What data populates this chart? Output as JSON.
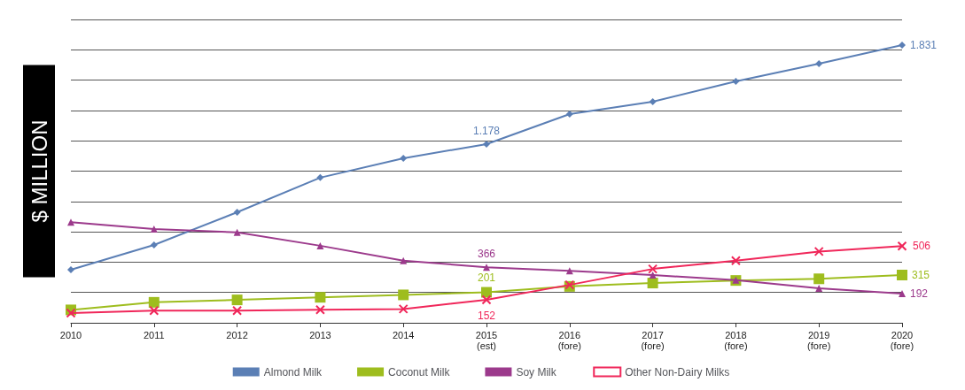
{
  "chart_data": {
    "type": "line",
    "ylabel": "$ MILLION",
    "categories": [
      "2010",
      "2011",
      "2012",
      "2013",
      "2014",
      "2015\n(est)",
      "2016\n(fore)",
      "2017\n(fore)",
      "2018\n(fore)",
      "2019\n(fore)",
      "2020\n(fore)"
    ],
    "series": [
      {
        "name": "Almond Milk",
        "color": "#5b7fb5",
        "marker": "diamond",
        "values": [
          350,
          513,
          729,
          957,
          1085,
          1178,
          1376,
          1458,
          1592,
          1709,
          1831
        ],
        "value_labels": [
          null,
          null,
          null,
          null,
          null,
          "1.178",
          null,
          null,
          null,
          null,
          "1.831"
        ]
      },
      {
        "name": "Coconut Milk",
        "color": "#9ebd1e",
        "marker": "square",
        "values": [
          85,
          135,
          151,
          168,
          184,
          201,
          240,
          262,
          279,
          290,
          315
        ],
        "value_labels": [
          null,
          null,
          null,
          null,
          null,
          "201",
          null,
          null,
          null,
          null,
          "315"
        ]
      },
      {
        "name": "Soy Milk",
        "color": "#9c3a8c",
        "marker": "triangle",
        "values": [
          663,
          618,
          596,
          508,
          410,
          366,
          343,
          315,
          282,
          227,
          192
        ],
        "value_labels": [
          null,
          null,
          null,
          null,
          null,
          "366",
          null,
          null,
          null,
          null,
          "192"
        ]
      },
      {
        "name": "Other Non-Dairy Milks",
        "color": "#f0275a",
        "marker": "cross",
        "values": [
          64,
          80,
          80,
          86,
          91,
          152,
          250,
          355,
          410,
          470,
          506
        ],
        "value_labels": [
          null,
          null,
          null,
          null,
          null,
          "152",
          null,
          null,
          null,
          null,
          "506"
        ]
      }
    ],
    "ylim": [
      0,
      2000
    ],
    "yticks": [
      {
        "value": 0,
        "label": null
      },
      {
        "value": 200,
        "label": null
      },
      {
        "value": 400,
        "label": null
      },
      {
        "value": 600,
        "label": null
      },
      {
        "value": 800,
        "label": null
      },
      {
        "value": 1000,
        "label": null
      },
      {
        "value": 1200,
        "label": null
      },
      {
        "value": 1400,
        "label": null
      },
      {
        "value": 1600,
        "label": null
      },
      {
        "value": 1800,
        "label": null
      },
      {
        "value": 2000,
        "label": null
      }
    ],
    "tick_labels": "x",
    "grid": "y",
    "legend": "bottom",
    "line_style": "solid"
  }
}
